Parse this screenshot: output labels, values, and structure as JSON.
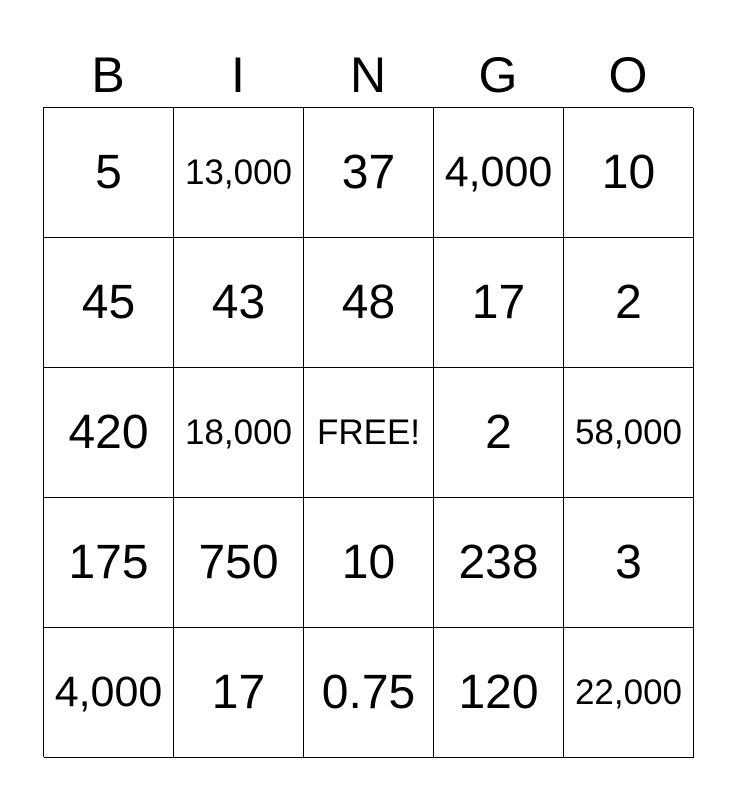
{
  "header": [
    "B",
    "I",
    "N",
    "G",
    "O"
  ],
  "rows": [
    [
      "5",
      "13,000",
      "37",
      "4,000",
      "10"
    ],
    [
      "45",
      "43",
      "48",
      "17",
      "2"
    ],
    [
      "420",
      "18,000",
      "FREE!",
      "2",
      "58,000"
    ],
    [
      "175",
      "750",
      "10",
      "238",
      "3"
    ],
    [
      "4,000",
      "17",
      "0.75",
      "120",
      "22,000"
    ]
  ]
}
